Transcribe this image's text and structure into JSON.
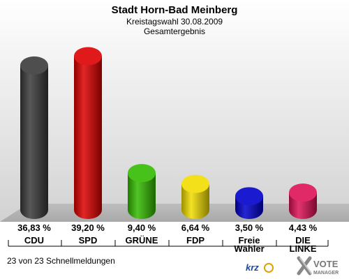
{
  "header": {
    "title": "Stadt Horn-Bad Meinberg",
    "subtitle": "Kreistagswahl 30.08.2009",
    "subtitle2": "Gesamtergebnis"
  },
  "chart_data": {
    "type": "bar",
    "title": "Stadt Horn-Bad Meinberg",
    "categories": [
      "CDU",
      "SPD",
      "GRÜNE",
      "FDP",
      "Freie Wähler",
      "DIE LINKE"
    ],
    "category_lines": [
      [
        "CDU"
      ],
      [
        "SPD"
      ],
      [
        "GRÜNE"
      ],
      [
        "FDP"
      ],
      [
        "Freie",
        "Wähler"
      ],
      [
        "DIE",
        "LINKE"
      ]
    ],
    "values": [
      36.83,
      39.2,
      9.4,
      6.64,
      3.5,
      4.43
    ],
    "value_labels": [
      "36,83 %",
      "39,20 %",
      "9,40 %",
      "6,64 %",
      "3,50 %",
      "4,43 %"
    ],
    "colors": [
      "#3a3a3a",
      "#dd0000",
      "#33bb00",
      "#f2dd00",
      "#0000cc",
      "#dd1155"
    ],
    "ylim": [
      0,
      40
    ],
    "grid": false,
    "legend": "none"
  },
  "footer": {
    "status": "23 von 23 Schnellmeldungen",
    "logo_krz": "krz",
    "logo_vote": "VOTE",
    "logo_manager": "MANAGER"
  }
}
